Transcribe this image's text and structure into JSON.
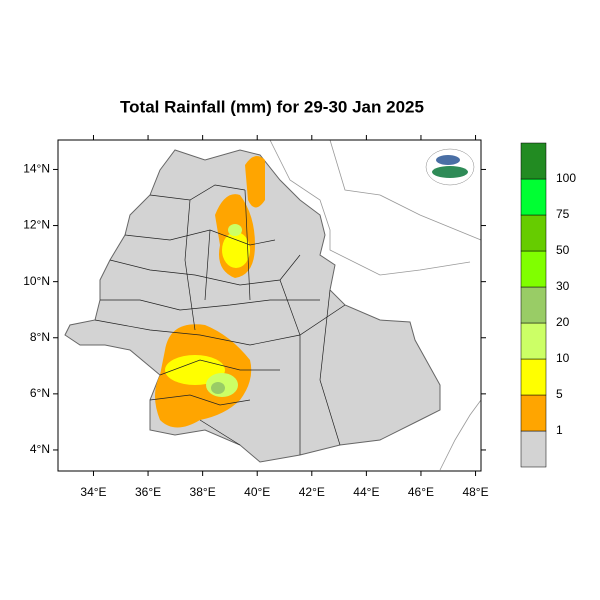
{
  "chart_data": {
    "type": "map",
    "title": "Total Rainfall (mm) for 29-30 Jan 2025",
    "xlim": [
      32.7,
      48.2
    ],
    "ylim": [
      3.25,
      15.05
    ],
    "xticks": [
      {
        "value": 34,
        "label": "34°E"
      },
      {
        "value": 36,
        "label": "36°E"
      },
      {
        "value": 38,
        "label": "38°E"
      },
      {
        "value": 40,
        "label": "40°E"
      },
      {
        "value": 42,
        "label": "42°E"
      },
      {
        "value": 44,
        "label": "44°E"
      },
      {
        "value": 46,
        "label": "46°E"
      },
      {
        "value": 48,
        "label": "48°E"
      }
    ],
    "yticks": [
      {
        "value": 4,
        "label": "4°N"
      },
      {
        "value": 6,
        "label": "6°N"
      },
      {
        "value": 8,
        "label": "8°N"
      },
      {
        "value": 10,
        "label": "10°N"
      },
      {
        "value": 12,
        "label": "12°N"
      },
      {
        "value": 14,
        "label": "14°N"
      }
    ],
    "levels": [
      1,
      5,
      10,
      20,
      30,
      50,
      75,
      100
    ],
    "colors": [
      "#d3d3d3",
      "#ffa500",
      "#ffff00",
      "#ccff66",
      "#99cc66",
      "#80ff00",
      "#66cc00",
      "#00ff33",
      "#228b22"
    ]
  }
}
